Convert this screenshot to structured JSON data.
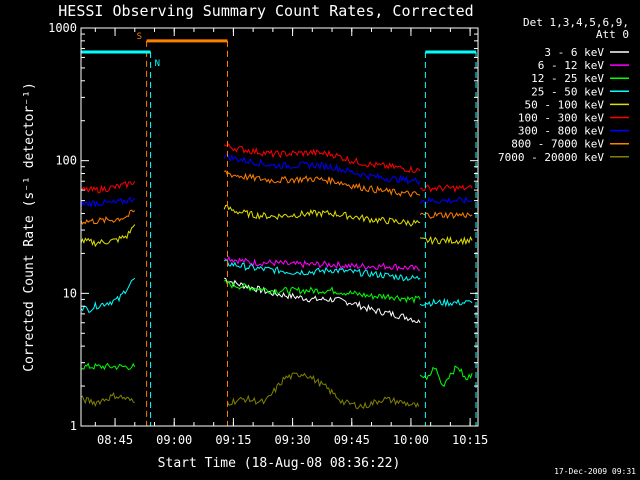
{
  "chart_data": {
    "type": "line",
    "title": "HESSI Observing Summary Count Rates, Corrected",
    "xlabel": "Start Time (18-Aug-08 08:36:22)",
    "ylabel": "Corrected Count Rate (s⁻¹ detector⁻¹)",
    "yscale": "log",
    "ylim": [
      1,
      1000
    ],
    "xlim": [
      "08:36:22",
      "10:17:00"
    ],
    "x_ticks": [
      "08:45",
      "09:00",
      "09:15",
      "09:30",
      "09:45",
      "10:00",
      "10:15"
    ],
    "y_ticks": [
      "1",
      "10",
      "100",
      "1000"
    ],
    "grid": false,
    "legend_position": "right",
    "legend_header": [
      "Det 1,3,4,5,6,9,",
      "Att 0"
    ],
    "footer": "17-Dec-2009 09:31",
    "annotations": [
      {
        "label": "S",
        "color": "#ff7f00",
        "start": "08:53:00",
        "end": "09:13:30",
        "level": 800
      },
      {
        "label": "N",
        "color": "#00ffff",
        "start": "08:36:22",
        "end": "08:54:00",
        "level": 660
      },
      {
        "label": "",
        "color": "#00ffff",
        "start": "10:03:40",
        "end": "10:16:30",
        "level": 660
      }
    ],
    "series": [
      {
        "name": "3 - 6 keV",
        "color": "#ffffff",
        "segments": [
          {
            "x": [
              "09:12:40",
              "09:15:00",
              "09:20:00",
              "09:25:00",
              "09:30:00",
              "09:35:00",
              "09:40:00",
              "09:45:00",
              "09:50:00",
              "09:55:00",
              "10:00:00",
              "10:02:20"
            ],
            "y": [
              13,
              12,
              11,
              10,
              9.5,
              9,
              9,
              8.5,
              7.5,
              7,
              6.5,
              6
            ]
          }
        ]
      },
      {
        "name": "6 - 12 keV",
        "color": "#ff00ff",
        "segments": [
          {
            "x": [
              "09:12:40",
              "09:15:00",
              "09:20:00",
              "09:25:00",
              "09:30:00",
              "09:35:00",
              "09:40:00",
              "09:45:00",
              "09:50:00",
              "09:55:00",
              "10:00:00",
              "10:02:20"
            ],
            "y": [
              19,
              18,
              17,
              17,
              16.5,
              16.5,
              16.5,
              16,
              16,
              16,
              15.5,
              15
            ]
          }
        ]
      },
      {
        "name": "12 - 25 keV",
        "color": "#00ff00",
        "segments": [
          {
            "x": [
              "08:36:22",
              "08:40:00",
              "08:45:00",
              "08:48:00",
              "08:50:00"
            ],
            "y": [
              2.8,
              2.8,
              2.8,
              2.8,
              2.8
            ]
          },
          {
            "x": [
              "09:12:40",
              "09:15:00",
              "09:20:00",
              "09:25:00",
              "09:30:00",
              "09:35:00",
              "09:40:00",
              "09:45:00",
              "09:50:00",
              "09:55:00",
              "10:00:00",
              "10:02:20"
            ],
            "y": [
              12,
              11.5,
              11,
              10.5,
              10.5,
              10.5,
              10.5,
              10,
              9.5,
              9.5,
              9,
              9
            ]
          },
          {
            "x": [
              "10:02:20",
              "10:04:00",
              "10:06:00",
              "10:08:00",
              "10:10:00",
              "10:12:00",
              "10:14:00",
              "10:15:30"
            ],
            "y": [
              2.5,
              2.2,
              2.8,
              2.0,
              2.5,
              2.8,
              2.2,
              2.5
            ]
          }
        ]
      },
      {
        "name": "25 - 50 keV",
        "color": "#00ffff",
        "segments": [
          {
            "x": [
              "08:36:22",
              "08:38:00",
              "08:40:00",
              "08:43:00",
              "08:46:00",
              "08:48:00",
              "08:50:00"
            ],
            "y": [
              8,
              7.5,
              8,
              8.5,
              9,
              11,
              13
            ]
          },
          {
            "x": [
              "09:12:40",
              "09:15:00",
              "09:20:00",
              "09:25:00",
              "09:30:00",
              "09:35:00",
              "09:40:00",
              "09:45:00",
              "09:50:00",
              "09:55:00",
              "10:00:00",
              "10:02:20"
            ],
            "y": [
              17,
              16.5,
              15.5,
              15,
              14.5,
              14.5,
              15,
              14.5,
              14,
              13.5,
              13,
              13
            ]
          },
          {
            "x": [
              "10:02:20",
              "10:05:00",
              "10:10:00",
              "10:15:30"
            ],
            "y": [
              8.5,
              8.5,
              8.5,
              8.5
            ]
          }
        ]
      },
      {
        "name": "50 - 100 keV",
        "color": "#e0e000",
        "segments": [
          {
            "x": [
              "08:36:22",
              "08:40:00",
              "08:45:00",
              "08:48:00",
              "08:50:00"
            ],
            "y": [
              25,
              24,
              25,
              27,
              33
            ]
          },
          {
            "x": [
              "09:12:40",
              "09:15:00",
              "09:20:00",
              "09:25:00",
              "09:30:00",
              "09:35:00",
              "09:40:00",
              "09:45:00",
              "09:50:00",
              "09:55:00",
              "10:00:00",
              "10:02:20"
            ],
            "y": [
              45,
              42,
              39,
              38,
              39,
              40,
              40,
              38,
              36,
              35,
              34,
              34
            ]
          },
          {
            "x": [
              "10:02:20",
              "10:05:00",
              "10:10:00",
              "10:15:30"
            ],
            "y": [
              25,
              25,
              25,
              25
            ]
          }
        ]
      },
      {
        "name": "100 - 300 keV",
        "color": "#ff0000",
        "segments": [
          {
            "x": [
              "08:36:22",
              "08:40:00",
              "08:45:00",
              "08:48:00",
              "08:50:00"
            ],
            "y": [
              60,
              60,
              63,
              66,
              70
            ]
          },
          {
            "x": [
              "09:12:40",
              "09:15:00",
              "09:20:00",
              "09:25:00",
              "09:30:00",
              "09:35:00",
              "09:40:00",
              "09:45:00",
              "09:50:00",
              "09:55:00",
              "10:00:00",
              "10:02:20"
            ],
            "y": [
              130,
              125,
              118,
              112,
              113,
              115,
              112,
              100,
              93,
              90,
              86,
              84
            ]
          },
          {
            "x": [
              "10:02:20",
              "10:05:00",
              "10:10:00",
              "10:15:30"
            ],
            "y": [
              62,
              62,
              62,
              62
            ]
          }
        ]
      },
      {
        "name": "300 - 800 keV",
        "color": "#0000ff",
        "segments": [
          {
            "x": [
              "08:36:22",
              "08:40:00",
              "08:45:00",
              "08:48:00",
              "08:50:00"
            ],
            "y": [
              47,
              48,
              48,
              50,
              52
            ]
          },
          {
            "x": [
              "09:12:40",
              "09:15:00",
              "09:20:00",
              "09:25:00",
              "09:30:00",
              "09:35:00",
              "09:40:00",
              "09:45:00",
              "09:50:00",
              "09:55:00",
              "10:00:00",
              "10:02:20"
            ],
            "y": [
              110,
              104,
              98,
              92,
              92,
              93,
              90,
              82,
              76,
              73,
              71,
              70
            ]
          },
          {
            "x": [
              "10:02:20",
              "10:05:00",
              "10:10:00",
              "10:15:30"
            ],
            "y": [
              50,
              50,
              50,
              50
            ]
          }
        ]
      },
      {
        "name": "800 - 7000 keV",
        "color": "#ff7f00",
        "segments": [
          {
            "x": [
              "08:36:22",
              "08:40:00",
              "08:45:00",
              "08:48:00",
              "08:50:00"
            ],
            "y": [
              35,
              35,
              36,
              38,
              42
            ]
          },
          {
            "x": [
              "09:12:40",
              "09:15:00",
              "09:20:00",
              "09:25:00",
              "09:30:00",
              "09:35:00",
              "09:40:00",
              "09:45:00",
              "09:50:00",
              "09:55:00",
              "10:00:00",
              "10:02:20"
            ],
            "y": [
              82,
              78,
              74,
              71,
              72,
              73,
              71,
              65,
              61,
              58,
              56,
              55
            ]
          },
          {
            "x": [
              "10:02:20",
              "10:05:00",
              "10:10:00",
              "10:15:30"
            ],
            "y": [
              39,
              39,
              39,
              39
            ]
          }
        ]
      },
      {
        "name": "7000 - 20000 keV",
        "color": "#808000",
        "segments": [
          {
            "x": [
              "08:36:22",
              "08:40:00",
              "08:45:00",
              "08:48:00",
              "08:50:00"
            ],
            "y": [
              1.6,
              1.5,
              1.7,
              1.6,
              1.5
            ]
          },
          {
            "x": [
              "09:13:30",
              "09:18:00",
              "09:23:00",
              "09:28:00",
              "09:33:00",
              "09:38:00",
              "09:43:00",
              "09:48:00",
              "09:53:00",
              "09:58:00",
              "10:02:00"
            ],
            "y": [
              1.5,
              1.6,
              1.5,
              2.3,
              2.5,
              2.0,
              1.5,
              1.4,
              1.6,
              1.5,
              1.4
            ]
          }
        ]
      }
    ]
  }
}
